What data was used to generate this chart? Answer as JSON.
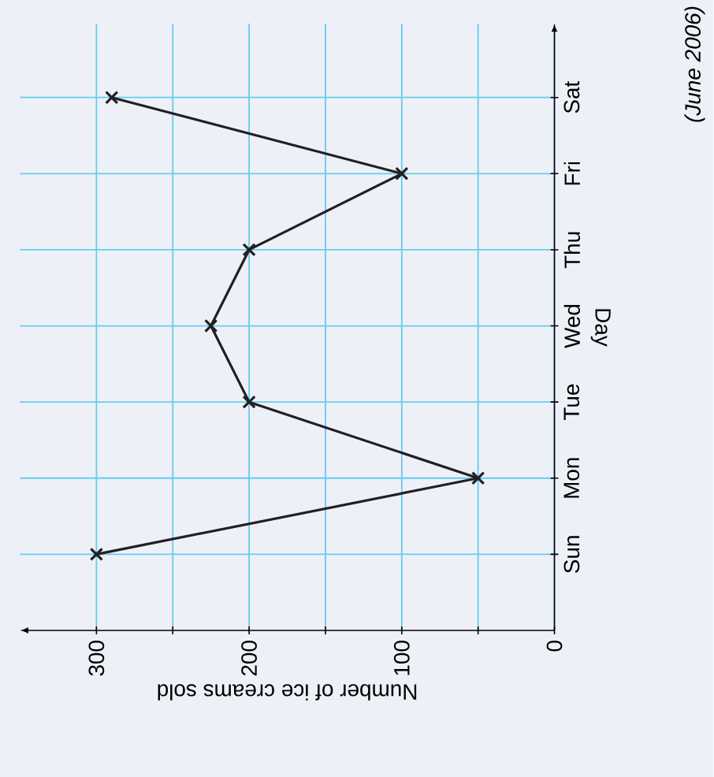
{
  "chart_data": {
    "type": "line",
    "orientation": "horizontal",
    "categories": [
      "Sat",
      "Fri",
      "Thu",
      "Wed",
      "Tue",
      "Mon",
      "Sun"
    ],
    "values": [
      290,
      100,
      200,
      225,
      200,
      50,
      300
    ],
    "color": "#231f20",
    "xlabel": "Number of ice creams sold",
    "ylabel": "Day",
    "annotations": [
      "(June 2006)"
    ],
    "xlim": [
      350,
      0
    ],
    "xticks": [
      0,
      {
        "value": 50,
        "label": null
      },
      100,
      {
        "value": 150,
        "label": null
      },
      200,
      {
        "value": 250,
        "label": null
      },
      300
    ],
    "grid": true,
    "marker": "cross",
    "line_style": "solid"
  }
}
